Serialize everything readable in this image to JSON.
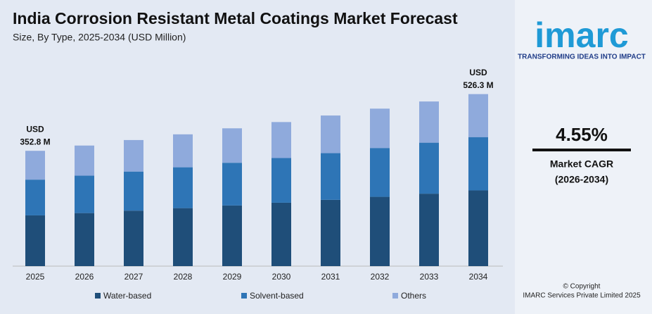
{
  "chart_data": {
    "type": "stacked_bar",
    "title": "India Corrosion Resistant Metal Coatings Market Forecast",
    "subtitle": "Size, By Type, 2025-2034 (USD Million)",
    "categories": [
      "2025",
      "2026",
      "2027",
      "2028",
      "2029",
      "2030",
      "2031",
      "2032",
      "2033",
      "2034"
    ],
    "series": [
      {
        "name": "Water-based",
        "color": "#1f4e79",
        "values": [
          155.2,
          162.3,
          169.7,
          177.4,
          185.5,
          194.0,
          202.8,
          212.0,
          221.6,
          231.6
        ]
      },
      {
        "name": "Solvent-based",
        "color": "#2e75b6",
        "values": [
          109.4,
          114.4,
          119.6,
          125.0,
          130.7,
          136.6,
          142.8,
          149.4,
          156.1,
          163.2
        ]
      },
      {
        "name": "Others",
        "color": "#8faadc",
        "values": [
          88.2,
          92.2,
          96.4,
          100.8,
          105.4,
          110.2,
          115.2,
          120.4,
          126.0,
          131.5
        ]
      }
    ],
    "annotations": [
      [
        "USD",
        "352.8 M"
      ],
      [
        "USD",
        "526.3 M"
      ]
    ],
    "ylim": [
      0,
      560
    ],
    "legend": "bottom"
  },
  "side_panel": {
    "logo": "imarc",
    "tagline": "TRANSFORMING IDEAS INTO IMPACT",
    "cagr": "4.55%",
    "cagr_label": "Market CAGR",
    "cagr_period": "(2026-2034)",
    "copyright": "© Copyright",
    "owner": "IMARC Services Private Limited 2025"
  }
}
